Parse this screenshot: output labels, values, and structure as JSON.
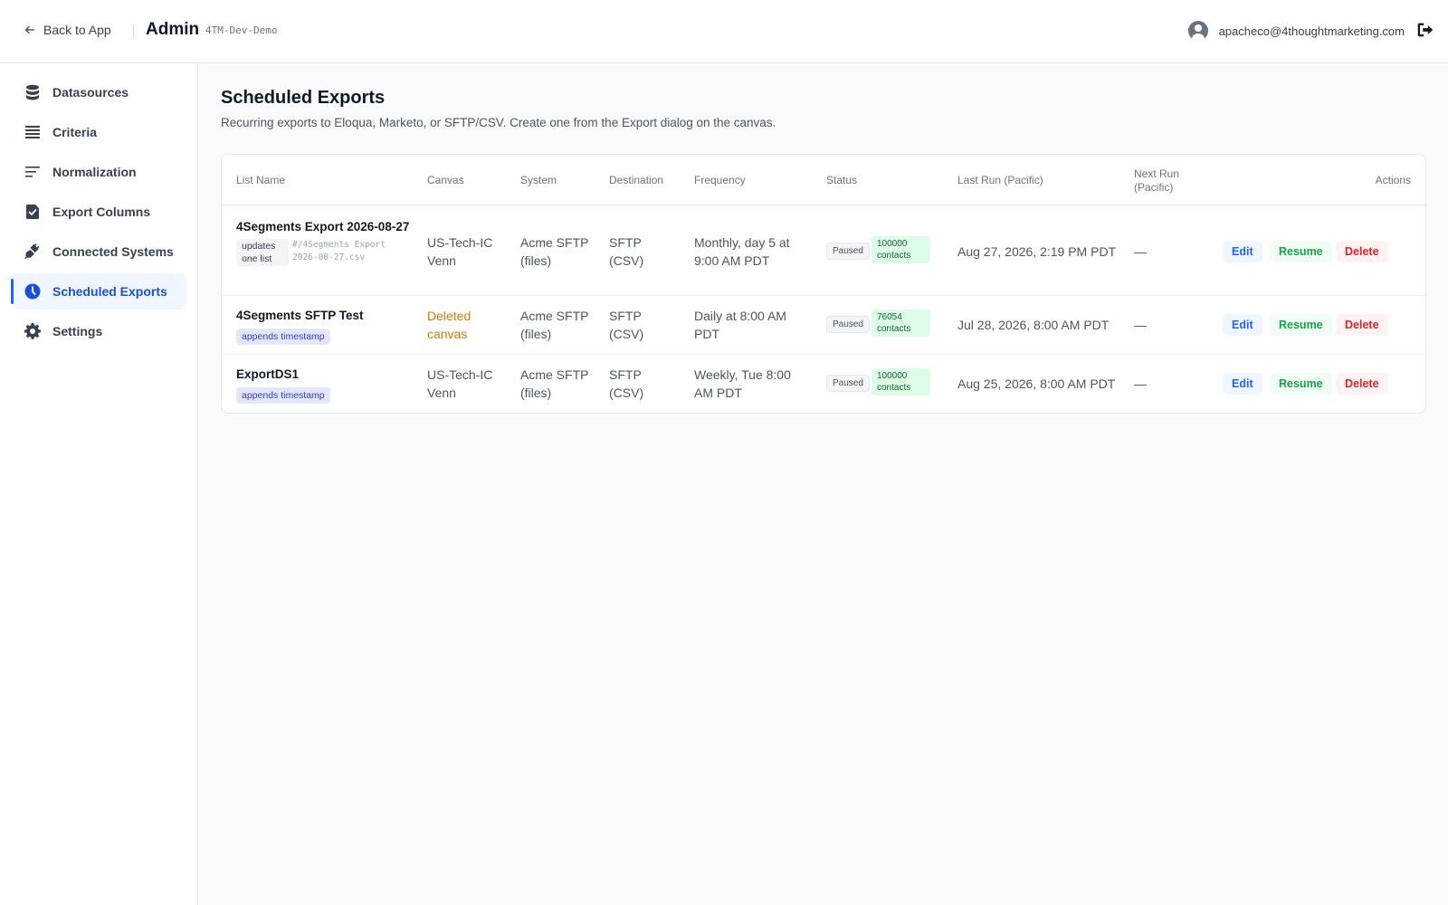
{
  "header": {
    "back_label": "Back to App",
    "app_title": "Admin",
    "env": "4TM-Dev-Demo",
    "user_email": "apacheco@4thoughtmarketing.com"
  },
  "sidebar": {
    "items": [
      {
        "label": "Datasources",
        "icon": "database-icon"
      },
      {
        "label": "Criteria",
        "icon": "list-icon"
      },
      {
        "label": "Normalization",
        "icon": "lines-icon"
      },
      {
        "label": "Export Columns",
        "icon": "check-file-icon"
      },
      {
        "label": "Connected Systems",
        "icon": "plug-icon"
      },
      {
        "label": "Scheduled Exports",
        "icon": "clock-icon",
        "active": true
      },
      {
        "label": "Settings",
        "icon": "gear-icon"
      }
    ]
  },
  "page": {
    "title": "Scheduled Exports",
    "subtitle": "Recurring exports to Eloqua, Marketo, or SFTP/CSV. Create one from the Export dialog on the canvas."
  },
  "table": {
    "columns": [
      "List Name",
      "Canvas",
      "System",
      "Destination",
      "Frequency",
      "Status",
      "Last Run (Pacific)",
      "Next Run (Pacific)",
      "Actions"
    ],
    "rows": [
      {
        "name": "4Segments Export 2026-08-27",
        "tag": "updates one list",
        "file": "#/4Segments Export 2026-08-27.csv",
        "canvas": "US-Tech-IC Venn",
        "system": "Acme SFTP (files)",
        "destination": "SFTP (CSV)",
        "frequency": "Monthly, day 5 at 9:00 AM PDT",
        "status": "Paused",
        "contacts": "100000 contacts",
        "last_run": "Aug 27, 2026, 2:19 PM PDT",
        "next_run": "—"
      },
      {
        "name": "4Segments SFTP Test",
        "tag": "appends timestamp",
        "canvas": "Deleted canvas",
        "system": "Acme SFTP (files)",
        "destination": "SFTP (CSV)",
        "frequency": "Daily at 8:00 AM PDT",
        "status": "Paused",
        "contacts": "76054 contacts",
        "last_run": "Jul 28, 2026, 8:00 AM PDT",
        "next_run": "—"
      },
      {
        "name": "ExportDS1",
        "tag": "appends timestamp",
        "canvas": "US-Tech-IC Venn",
        "system": "Acme SFTP (files)",
        "destination": "SFTP (CSV)",
        "frequency": "Weekly, Tue 8:00 AM PDT",
        "status": "Paused",
        "contacts": "100000 contacts",
        "last_run": "Aug 25, 2026, 8:00 AM PDT",
        "next_run": "—"
      }
    ],
    "actions": {
      "edit": "Edit",
      "resume": "Resume",
      "delete": "Delete"
    }
  },
  "colors": {
    "accent": "#2563eb",
    "deleted": "#d97706",
    "resume": "#16a34a",
    "delete": "#dc2626"
  }
}
